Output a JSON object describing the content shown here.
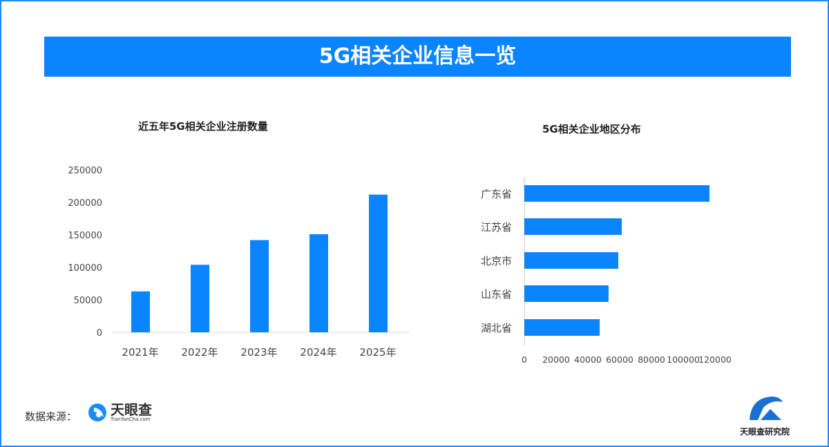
{
  "header": {
    "title": "5G相关企业信息一览"
  },
  "colors": {
    "accent": "#0a84ff",
    "bar": "#0a84ff"
  },
  "chart_data": [
    {
      "type": "bar",
      "title": "近五年5G相关企业注册数量",
      "categories": [
        "2021年",
        "2022年",
        "2023年",
        "2024年",
        "2025年"
      ],
      "values": [
        63000,
        104000,
        142000,
        151000,
        212000
      ],
      "ylim": [
        0,
        250000
      ],
      "yticks": [
        "0",
        "50000",
        "100000",
        "150000",
        "200000",
        "250000"
      ],
      "grid": false
    },
    {
      "type": "bar",
      "orientation": "horizontal",
      "title": "5G相关企业地区分布",
      "categories": [
        "广东省",
        "江苏省",
        "北京市",
        "山东省",
        "湖北省"
      ],
      "values": [
        116500,
        61300,
        59100,
        53000,
        47400
      ],
      "xlim": [
        0,
        120000
      ],
      "xticks": [
        "0",
        "20000",
        "40000",
        "60000",
        "80000",
        "100000",
        "120000"
      ],
      "grid": false
    }
  ],
  "footer": {
    "source_label": "数据来源：",
    "source_name": "天眼查",
    "source_url": "TianYanCha.com",
    "brand": "天眼查研究院"
  }
}
